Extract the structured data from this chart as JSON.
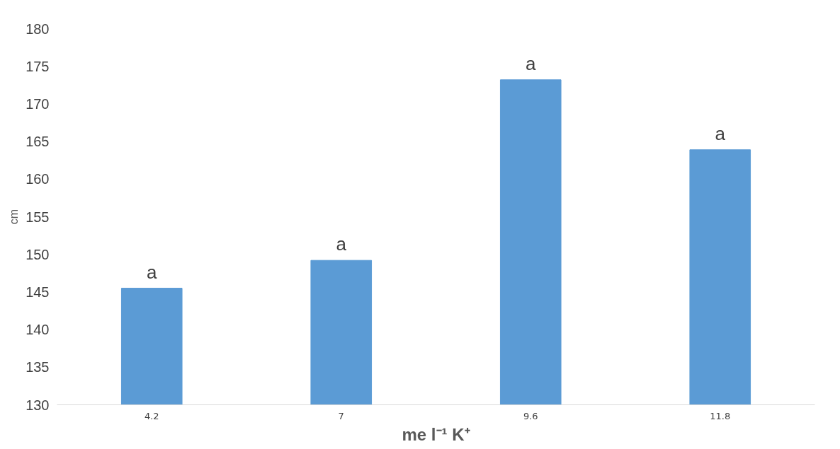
{
  "chart_data": {
    "type": "bar",
    "xlabel": "me l⁻¹ K⁺",
    "ylabel": "cm",
    "categories": [
      "4.2",
      "7",
      "9.6",
      "11.8"
    ],
    "values": [
      145.5,
      149.2,
      173.2,
      163.9
    ],
    "color": "#5b9bd5",
    "ylim": [
      130,
      180
    ],
    "yticks": [
      130,
      135,
      140,
      145,
      150,
      155,
      160,
      165,
      170,
      175,
      180
    ],
    "grid": false,
    "annotations": [
      {
        "text": "a",
        "x": "4.2",
        "y": 145.5
      },
      {
        "text": "a",
        "x": "7",
        "y": 149.2
      },
      {
        "text": "a",
        "x": "9.6",
        "y": 173.2
      },
      {
        "text": "a",
        "x": "11.8",
        "y": 163.9
      }
    ]
  }
}
